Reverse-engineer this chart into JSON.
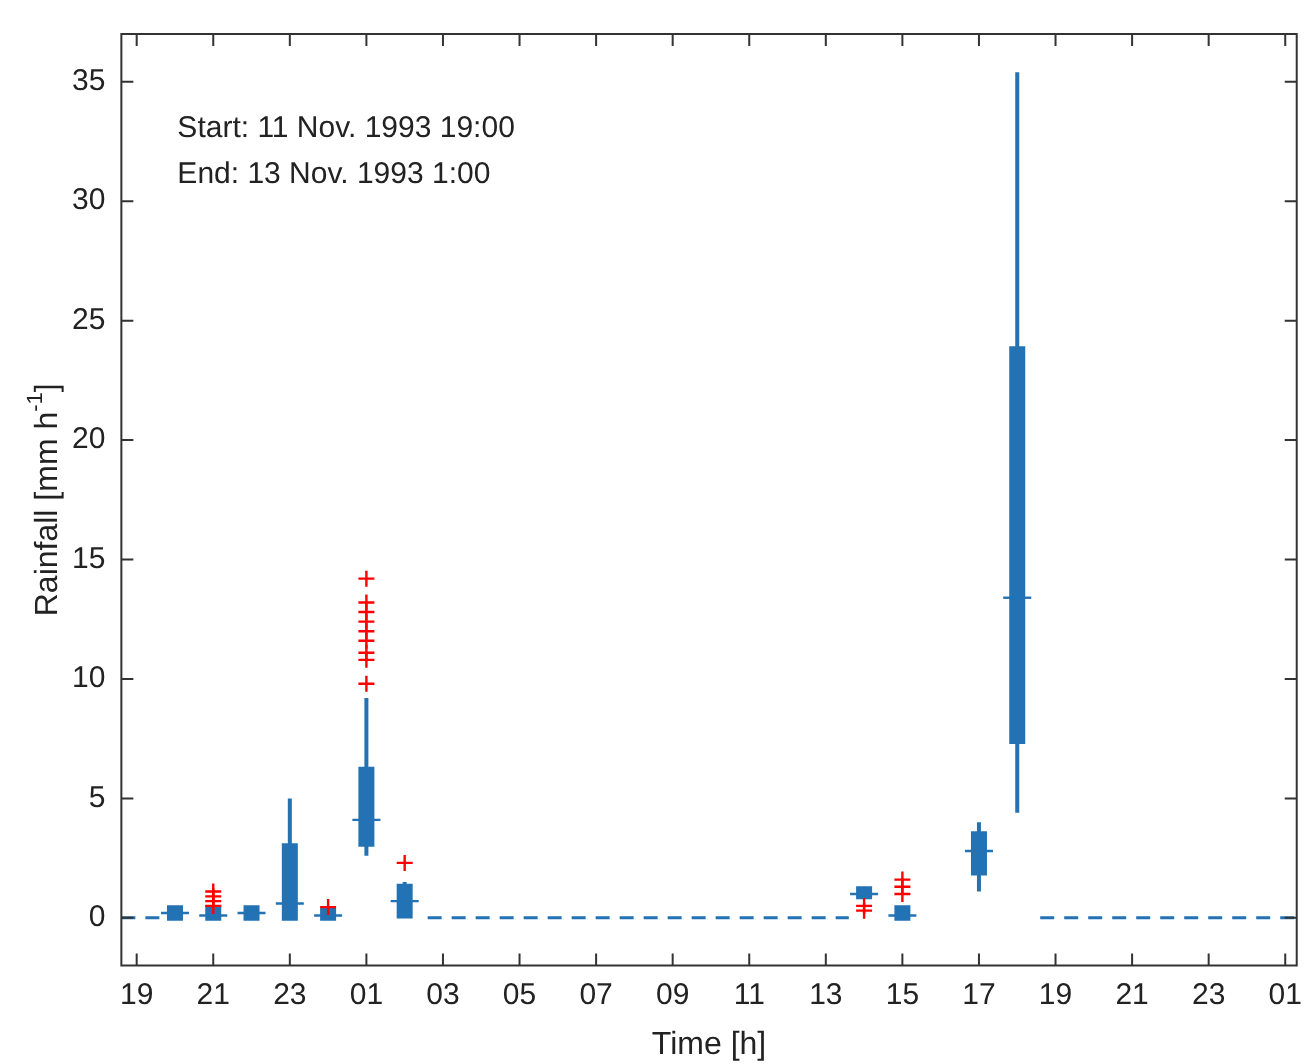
{
  "chart_data": {
    "type": "box",
    "xlabel": "Time [h]",
    "ylabel": "Rainfall [mm h$^{-1}$]",
    "annotations": [
      "Start: 11 Nov. 1993 19:00",
      "End: 13 Nov. 1993 1:00"
    ],
    "xlim": [
      "1993-11-11T18:36",
      "1993-11-13T01:18"
    ],
    "ylim": [
      -2,
      37
    ],
    "xticks": [
      {
        "value": "1993-11-11T19:00",
        "label": "19"
      },
      {
        "value": "1993-11-11T21:00",
        "label": "21"
      },
      {
        "value": "1993-11-11T23:00",
        "label": "23"
      },
      {
        "value": "1993-11-12T01:00",
        "label": "01"
      },
      {
        "value": "1993-11-12T03:00",
        "label": "03"
      },
      {
        "value": "1993-11-12T05:00",
        "label": "05"
      },
      {
        "value": "1993-11-12T07:00",
        "label": "07"
      },
      {
        "value": "1993-11-12T09:00",
        "label": "09"
      },
      {
        "value": "1993-11-12T11:00",
        "label": "11"
      },
      {
        "value": "1993-11-12T13:00",
        "label": "13"
      },
      {
        "value": "1993-11-12T15:00",
        "label": "15"
      },
      {
        "value": "1993-11-12T17:00",
        "label": "17"
      },
      {
        "value": "1993-11-12T19:00",
        "label": "19"
      },
      {
        "value": "1993-11-12T21:00",
        "label": "21"
      },
      {
        "value": "1993-11-12T23:00",
        "label": "23"
      },
      {
        "value": "1993-11-13T01:00",
        "label": "01"
      }
    ],
    "yticks": [
      0,
      5,
      10,
      15,
      20,
      25,
      30,
      35
    ],
    "grid": false,
    "legend": false,
    "series": [
      {
        "color": "#2272b4",
        "x": [
          "1993-11-11T20:00",
          "1993-11-11T21:00",
          "1993-11-11T22:00",
          "1993-11-11T23:00",
          "1993-11-12T00:00",
          "1993-11-12T01:00",
          "1993-11-12T02:00",
          "1993-11-12T14:00",
          "1993-11-12T15:00",
          "1993-11-12T17:00",
          "1993-11-12T18:00"
        ],
        "boxes": [
          {
            "low": 0,
            "q1": 0,
            "median": 0.2,
            "q3": 0.4,
            "high": 0.5
          },
          {
            "low": 0,
            "q1": 0,
            "median": 0.1,
            "q3": 0.4,
            "high": 0.4,
            "outliers": [
              0.5,
              0.7,
              0.9,
              1.1
            ]
          },
          {
            "low": 0,
            "q1": 0,
            "median": 0.2,
            "q3": 0.4,
            "high": 0.4
          },
          {
            "low": 0,
            "q1": 0,
            "median": 0.6,
            "q3": 3.0,
            "high": 5.0
          },
          {
            "low": 0,
            "q1": 0,
            "median": 0.1,
            "q3": 0.3,
            "high": 0.3,
            "outliers": [
              0.45
            ]
          },
          {
            "low": 2.6,
            "q1": 3.1,
            "median": 4.1,
            "q3": 6.2,
            "high": 9.2,
            "outliers": [
              9.8,
              10.8,
              11.1,
              11.6,
              12.0,
              12.4,
              12.8,
              13.2,
              14.2
            ]
          },
          {
            "low": 0,
            "q1": 0.1,
            "median": 0.7,
            "q3": 1.3,
            "high": 1.5,
            "outliers": [
              2.3
            ]
          },
          {
            "low": 0.8,
            "q1": 0.9,
            "median": 1.0,
            "q3": 1.2,
            "high": 1.3,
            "outliers": [
              0.3,
              0.5
            ]
          },
          {
            "low": 0,
            "q1": 0,
            "median": 0.1,
            "q3": 0.4,
            "high": 0.5,
            "outliers": [
              1.0,
              1.3,
              1.6
            ]
          },
          {
            "low": 1.1,
            "q1": 1.9,
            "median": 2.8,
            "q3": 3.5,
            "high": 4.0
          },
          {
            "low": 4.4,
            "q1": 7.4,
            "median": 13.4,
            "q3": 23.8,
            "high": 35.4
          }
        ]
      },
      {
        "type": "line",
        "color": "#2272b4",
        "line_style": "dashed",
        "marker": "none",
        "x": [
          "1993-11-11T18:36",
          "1993-11-11T19:36",
          "1993-11-11T23:00",
          "1993-11-12T02:36",
          "1993-11-12T13:36",
          "1993-11-12T16:00",
          "1993-11-12T18:36",
          "1993-11-13T01:18"
        ],
        "values": [
          0,
          0,
          null,
          0,
          0,
          null,
          0,
          0
        ]
      }
    ]
  }
}
